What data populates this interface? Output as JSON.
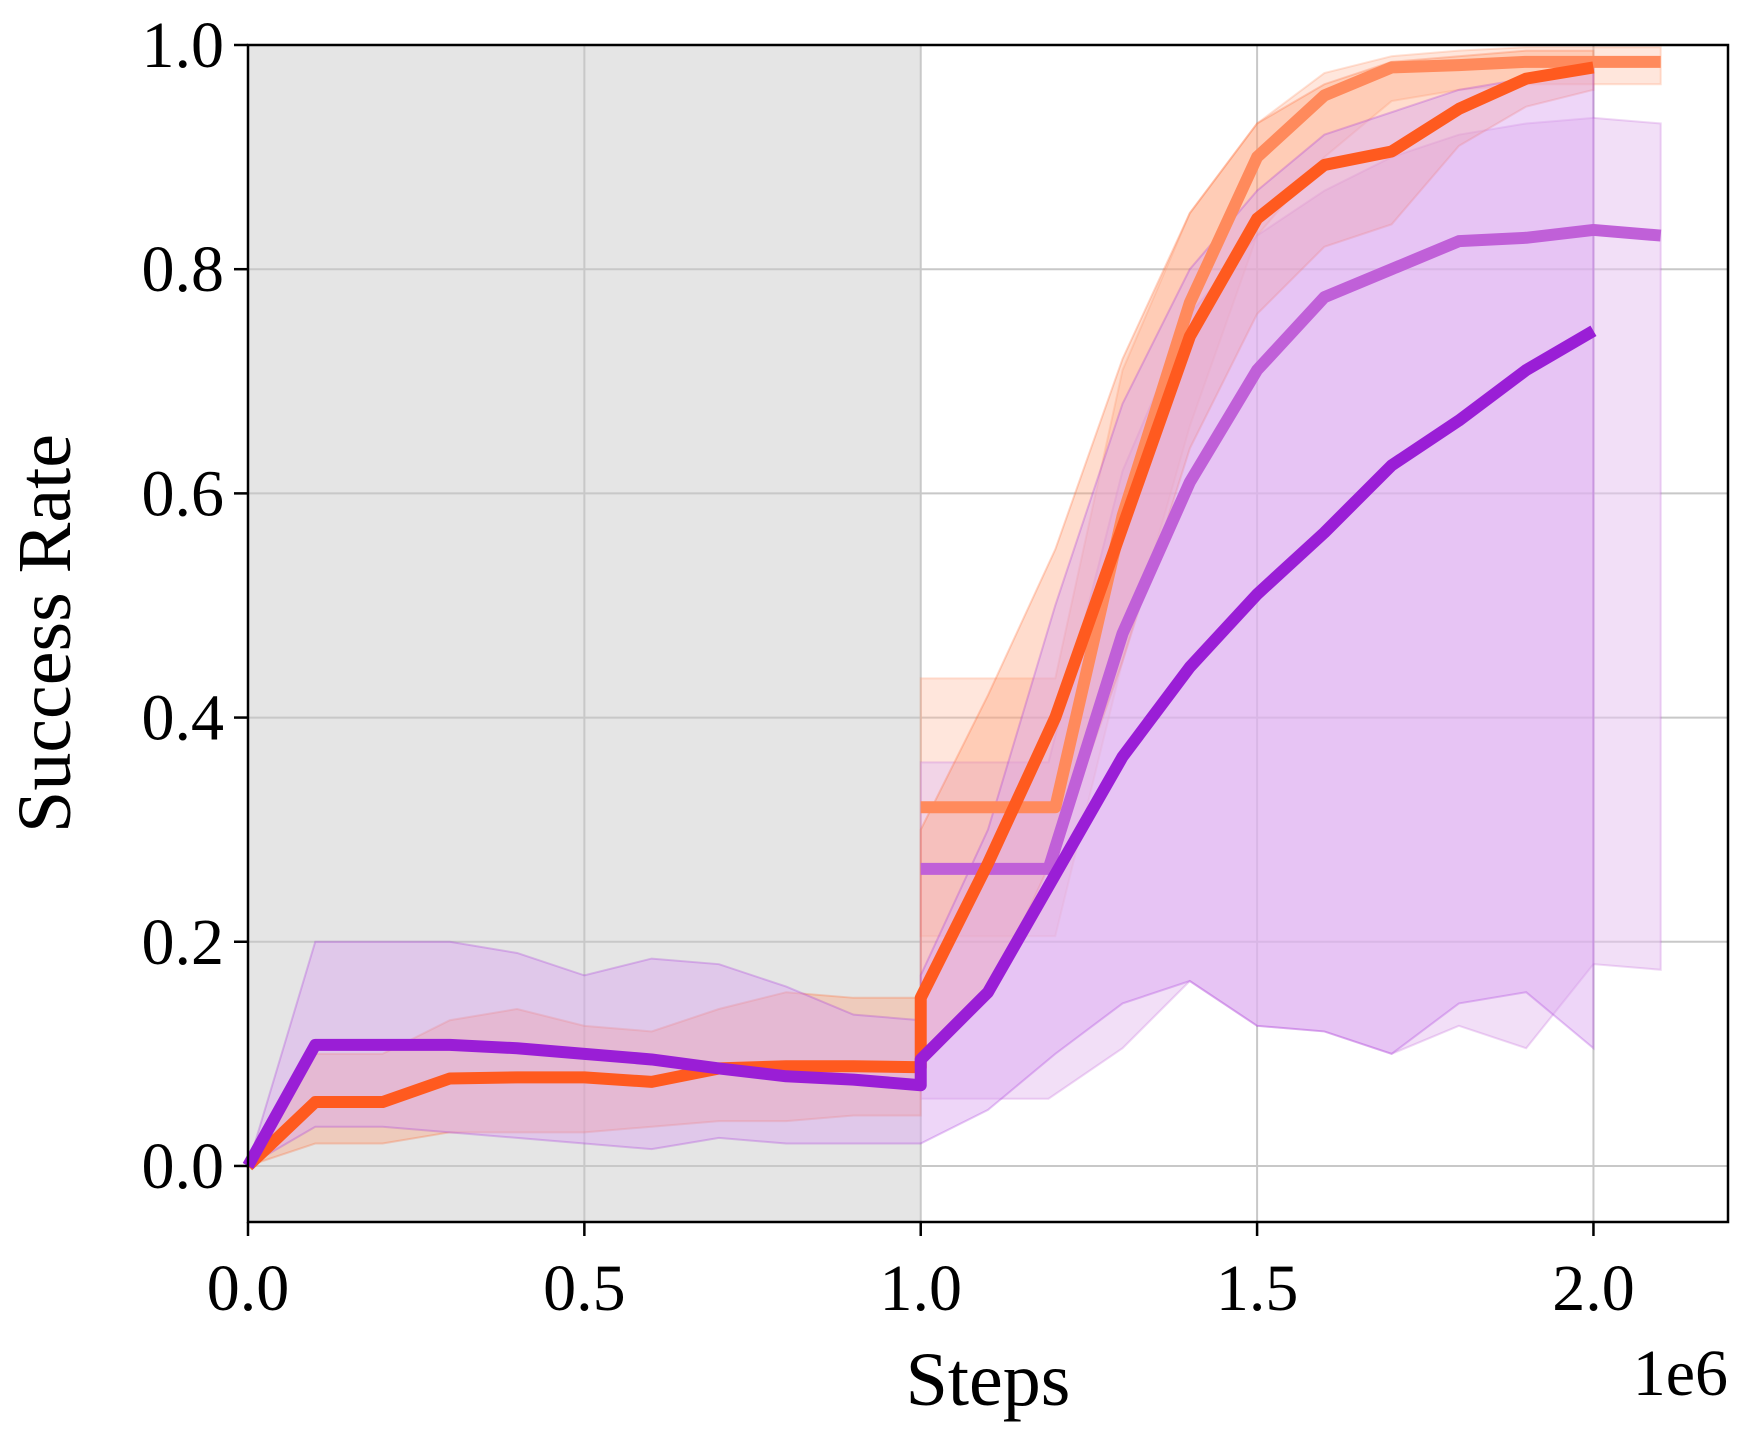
{
  "chart_data": {
    "type": "line",
    "title": "",
    "xlabel": "Steps",
    "ylabel": "Success Rate",
    "x_offset_label": "1e6",
    "xlim": [
      0.0,
      2.2
    ],
    "ylim": [
      -0.05,
      1.0
    ],
    "x_ticks": [
      0.0,
      0.5,
      1.0,
      1.5,
      2.0
    ],
    "x_tick_labels": [
      "0.0",
      "0.5",
      "1.0",
      "1.5",
      "2.0"
    ],
    "y_ticks": [
      0.0,
      0.2,
      0.4,
      0.6,
      0.8,
      1.0
    ],
    "y_tick_labels": [
      "0.0",
      "0.2",
      "0.4",
      "0.6",
      "0.8",
      "1.0"
    ],
    "grid": true,
    "legend": "none",
    "shaded_region": {
      "x_start": 0.0,
      "x_end": 1.0,
      "color": "#e5e5e5"
    },
    "series": [
      {
        "color": "#ff8a5c",
        "x": [
          1.0,
          1.2,
          1.3,
          1.4,
          1.5,
          1.6,
          1.7,
          1.8,
          1.9,
          2.0,
          2.1
        ],
        "y": [
          0.32,
          0.32,
          0.58,
          0.77,
          0.9,
          0.955,
          0.98,
          0.982,
          0.985,
          0.985,
          0.985
        ],
        "upper": [
          0.435,
          0.435,
          0.71,
          0.85,
          0.93,
          0.975,
          0.99,
          0.995,
          0.998,
          0.998,
          0.998
        ],
        "lower": [
          0.205,
          0.205,
          0.45,
          0.66,
          0.83,
          0.9,
          0.95,
          0.96,
          0.965,
          0.965,
          0.965
        ],
        "band_color": "#ffb89a",
        "band_opacity": 0.35
      },
      {
        "color": "#c060d8",
        "x": [
          1.0,
          1.19,
          1.3,
          1.4,
          1.5,
          1.6,
          1.7,
          1.8,
          1.9,
          2.0,
          2.1
        ],
        "y": [
          0.265,
          0.265,
          0.475,
          0.61,
          0.71,
          0.775,
          0.8,
          0.825,
          0.828,
          0.835,
          0.83
        ],
        "upper": [
          0.36,
          0.36,
          0.62,
          0.76,
          0.83,
          0.87,
          0.9,
          0.92,
          0.93,
          0.935,
          0.93
        ],
        "lower": [
          0.06,
          0.06,
          0.105,
          0.165,
          0.125,
          0.12,
          0.1,
          0.125,
          0.105,
          0.18,
          0.175
        ],
        "band_color": "#e8c4f0",
        "band_opacity": 0.55
      },
      {
        "color": "#ff5a1f",
        "x": [
          0.0,
          0.1,
          0.2,
          0.3,
          0.4,
          0.5,
          0.6,
          0.7,
          0.8,
          0.9,
          1.0,
          1.0,
          1.1,
          1.2,
          1.3,
          1.4,
          1.5,
          1.6,
          1.7,
          1.8,
          1.9,
          2.0
        ],
        "y": [
          0.0,
          0.057,
          0.057,
          0.078,
          0.079,
          0.079,
          0.075,
          0.087,
          0.089,
          0.089,
          0.088,
          0.15,
          0.27,
          0.4,
          0.57,
          0.74,
          0.845,
          0.893,
          0.905,
          0.943,
          0.97,
          0.98
        ],
        "upper": [
          0.0,
          0.1,
          0.1,
          0.13,
          0.14,
          0.125,
          0.12,
          0.14,
          0.155,
          0.15,
          0.15,
          0.3,
          0.42,
          0.55,
          0.72,
          0.85,
          0.93,
          0.965,
          0.985,
          0.99,
          0.995,
          0.995
        ],
        "lower": [
          0.0,
          0.02,
          0.02,
          0.03,
          0.03,
          0.03,
          0.035,
          0.04,
          0.04,
          0.045,
          0.045,
          0.09,
          0.15,
          0.28,
          0.45,
          0.64,
          0.76,
          0.82,
          0.84,
          0.91,
          0.945,
          0.96
        ],
        "band_color": "#ff9a70",
        "band_opacity": 0.35
      },
      {
        "color": "#9a1ed6",
        "x": [
          0.0,
          0.1,
          0.2,
          0.3,
          0.4,
          0.5,
          0.6,
          0.7,
          0.8,
          0.9,
          1.0,
          1.0,
          1.1,
          1.2,
          1.3,
          1.4,
          1.5,
          1.6,
          1.7,
          1.8,
          1.9,
          2.0
        ],
        "y": [
          0.0,
          0.108,
          0.108,
          0.108,
          0.105,
          0.1,
          0.095,
          0.087,
          0.08,
          0.077,
          0.072,
          0.095,
          0.155,
          0.26,
          0.365,
          0.445,
          0.51,
          0.565,
          0.625,
          0.665,
          0.71,
          0.745
        ],
        "upper": [
          0.0,
          0.2,
          0.2,
          0.2,
          0.19,
          0.17,
          0.185,
          0.18,
          0.16,
          0.135,
          0.13,
          0.17,
          0.3,
          0.5,
          0.68,
          0.8,
          0.87,
          0.92,
          0.94,
          0.96,
          0.97,
          0.98
        ],
        "lower": [
          0.0,
          0.035,
          0.035,
          0.03,
          0.025,
          0.02,
          0.015,
          0.025,
          0.02,
          0.02,
          0.02,
          0.02,
          0.05,
          0.1,
          0.145,
          0.165,
          0.125,
          0.12,
          0.1,
          0.145,
          0.155,
          0.105
        ],
        "band_color": "#d9a3ef",
        "band_opacity": 0.45
      }
    ]
  }
}
